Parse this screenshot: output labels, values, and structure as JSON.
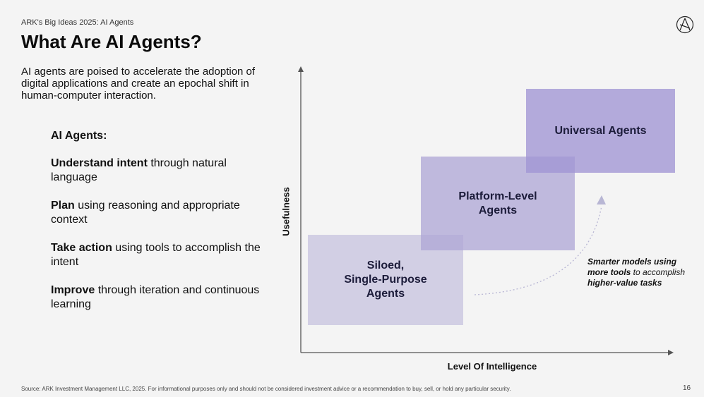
{
  "header": {
    "kicker": "ARK's Big Ideas 2025: AI Agents",
    "title": "What Are AI Agents?"
  },
  "intro": "AI agents are poised to accelerate the adoption of digital applications and create an epochal shift in human-computer interaction.",
  "points": {
    "heading": "AI Agents:",
    "items": [
      {
        "bold": "Understand intent",
        "rest": " through natural language"
      },
      {
        "bold": "Plan",
        "rest": " using reasoning and appropriate context"
      },
      {
        "bold": "Take action",
        "rest": " using tools to accomplish the intent"
      },
      {
        "bold": "Improve",
        "rest": " through iteration and continuous learning"
      }
    ]
  },
  "diagram": {
    "y_axis_label": "Usefulness",
    "x_axis_label": "Level Of Intelligence",
    "boxes": {
      "siloed": "Siloed,\nSingle-Purpose\nAgents",
      "platform": "Platform-Level\nAgents",
      "universal": "Universal Agents"
    },
    "annotation": {
      "p1": "Smarter models using ",
      "b1": "more tools",
      "p2": " to accomplish ",
      "b2": "higher-value tasks"
    },
    "colors": {
      "siloed": "#c5c1de",
      "platform": "#aea6d6",
      "universal": "#a095d4",
      "arrow": "#b8b6d4"
    }
  },
  "footer": {
    "source": "Source: ARK Investment Management LLC, 2025. For informational purposes only and should not be considered investment advice or a recommendation to buy, sell, or hold any particular security.",
    "page_number": "16"
  }
}
